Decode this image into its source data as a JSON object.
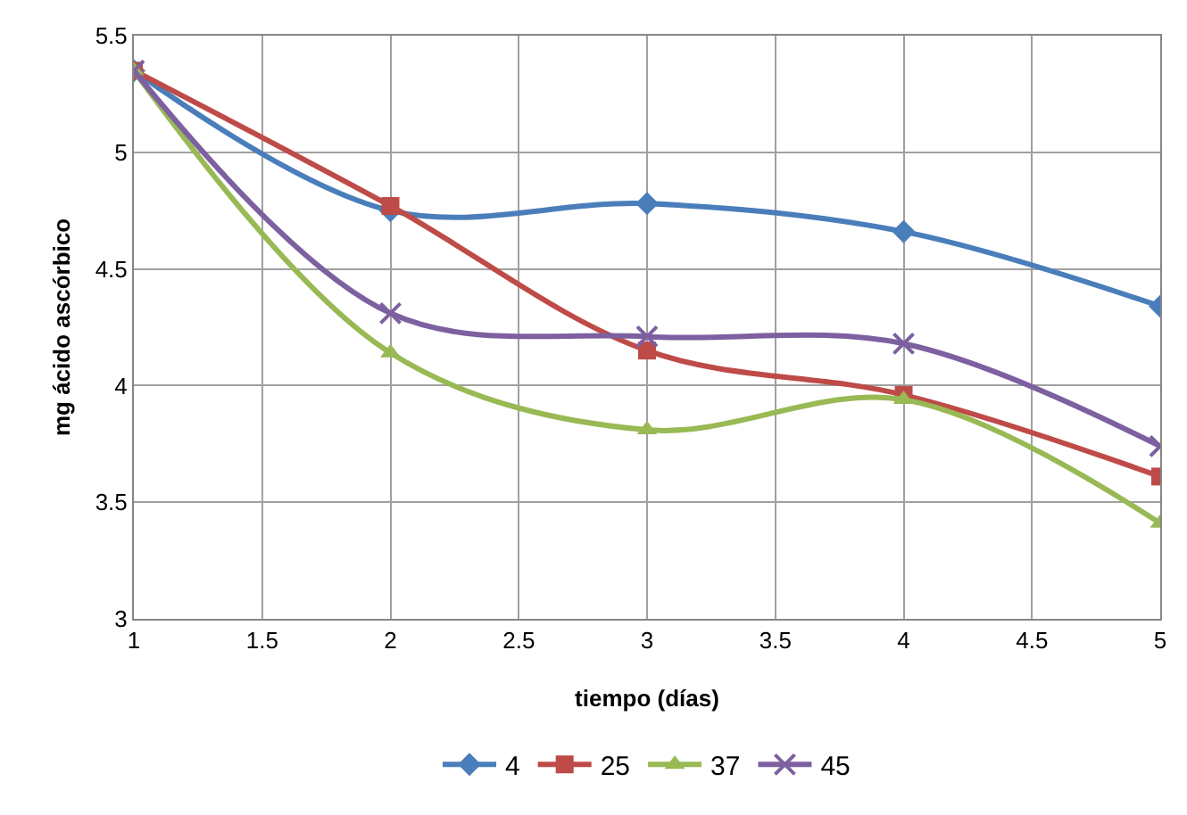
{
  "chart_data": {
    "type": "line",
    "xlabel": "tiempo (días)",
    "ylabel": "mg ácido ascórbico",
    "x": [
      1,
      2,
      3,
      4,
      5
    ],
    "xlim": [
      1,
      5
    ],
    "xticks": [
      1,
      1.5,
      2,
      2.5,
      3,
      3.5,
      4,
      4.5,
      5
    ],
    "ylim": [
      3,
      5.5
    ],
    "yticks": [
      3,
      3.5,
      4,
      4.5,
      5,
      5.5
    ],
    "grid": true,
    "legend": "bottom",
    "line_style": "solid",
    "series": [
      {
        "name": "4",
        "color": "#4a7ebb",
        "marker": "diamond",
        "values": [
          5.35,
          4.75,
          4.78,
          4.66,
          4.34
        ]
      },
      {
        "name": "25",
        "color": "#be4b48",
        "marker": "square",
        "values": [
          5.35,
          4.77,
          4.15,
          3.96,
          3.61
        ]
      },
      {
        "name": "37",
        "color": "#98b954",
        "marker": "triangle",
        "values": [
          5.35,
          4.14,
          3.81,
          3.94,
          3.41
        ]
      },
      {
        "name": "45",
        "color": "#7d60a0",
        "marker": "cross",
        "values": [
          5.35,
          4.31,
          4.21,
          4.18,
          3.74
        ]
      }
    ]
  }
}
